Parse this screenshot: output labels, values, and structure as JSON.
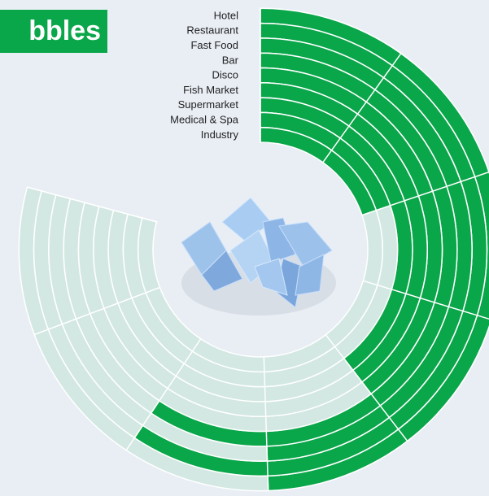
{
  "chart_data": {
    "type": "radial-bar",
    "title": "bbles",
    "categories": [
      "Hotel",
      "Restaurant",
      "Fast Food",
      "Bar",
      "Disco",
      "Fish Market",
      "Supermarket",
      "Medical & Spa",
      "Industry"
    ],
    "values": [
      5,
      6,
      5,
      6,
      4,
      4,
      4,
      2,
      2
    ],
    "color": "#0aa64a",
    "track_color": "#d3e8e2",
    "rlim": [
      0,
      8
    ],
    "ticks": [
      0,
      1,
      2,
      3,
      4,
      5,
      6,
      7,
      8
    ]
  }
}
